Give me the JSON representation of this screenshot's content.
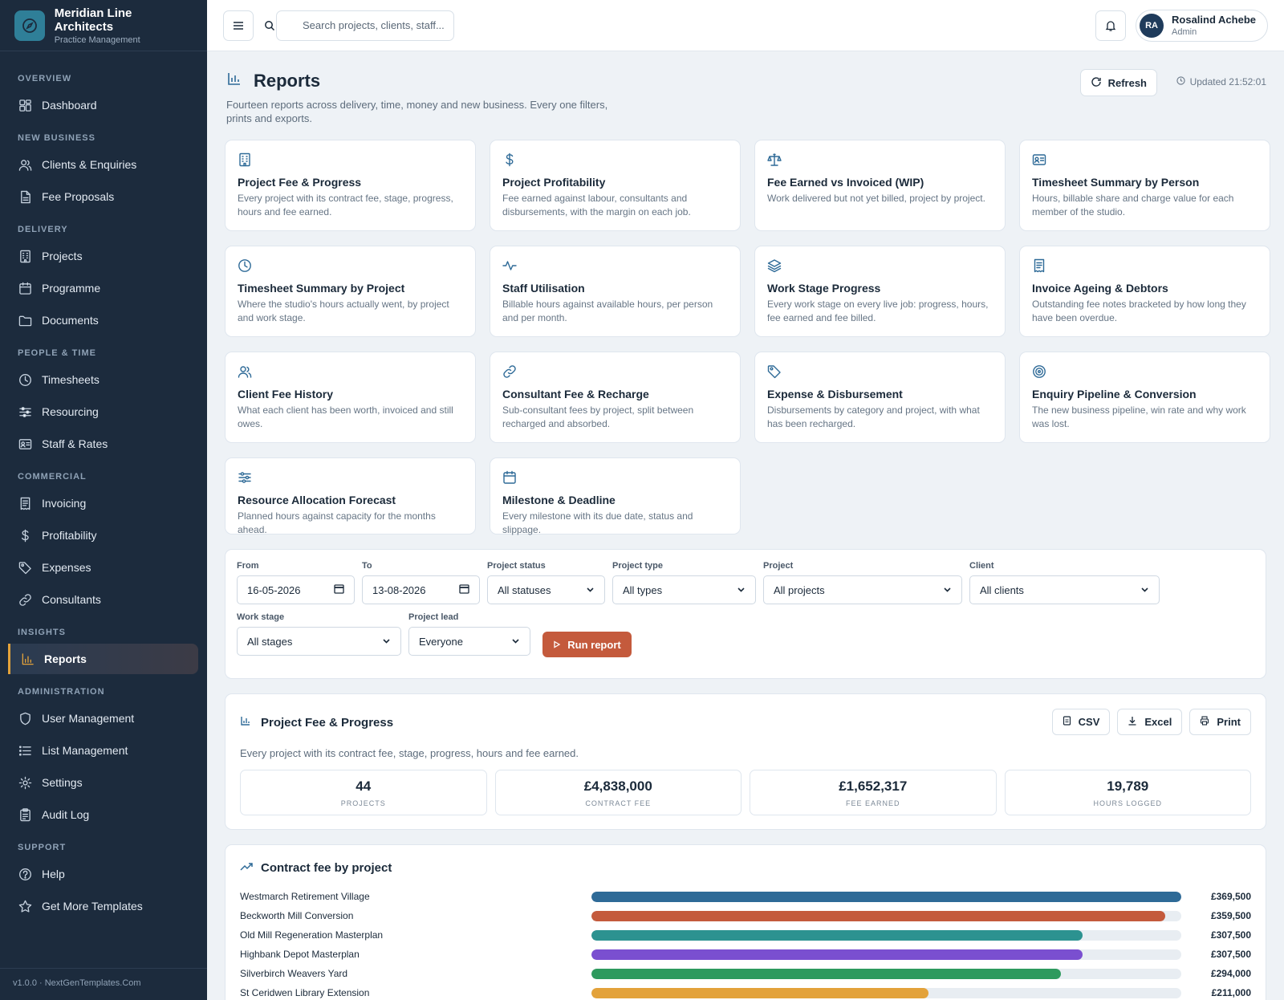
{
  "brand": {
    "name": "Meridian Line Architects",
    "sub": "Practice Management"
  },
  "sidebar": {
    "sections": [
      {
        "title": "OVERVIEW",
        "items": [
          {
            "label": "Dashboard",
            "icon": "dashboard-icon"
          }
        ]
      },
      {
        "title": "NEW BUSINESS",
        "items": [
          {
            "label": "Clients & Enquiries",
            "icon": "users-icon"
          },
          {
            "label": "Fee Proposals",
            "icon": "document-icon"
          }
        ]
      },
      {
        "title": "DELIVERY",
        "items": [
          {
            "label": "Projects",
            "icon": "building-icon"
          },
          {
            "label": "Programme",
            "icon": "calendar-icon"
          },
          {
            "label": "Documents",
            "icon": "folder-icon"
          }
        ]
      },
      {
        "title": "PEOPLE & TIME",
        "items": [
          {
            "label": "Timesheets",
            "icon": "clock-icon"
          },
          {
            "label": "Resourcing",
            "icon": "sliders-icon"
          },
          {
            "label": "Staff & Rates",
            "icon": "id-card-icon"
          }
        ]
      },
      {
        "title": "COMMERCIAL",
        "items": [
          {
            "label": "Invoicing",
            "icon": "invoice-icon"
          },
          {
            "label": "Profitability",
            "icon": "dollar-icon"
          },
          {
            "label": "Expenses",
            "icon": "tag-icon"
          },
          {
            "label": "Consultants",
            "icon": "link-icon"
          }
        ]
      },
      {
        "title": "INSIGHTS",
        "items": [
          {
            "label": "Reports",
            "icon": "bar-chart-icon",
            "active": true
          }
        ]
      },
      {
        "title": "ADMINISTRATION",
        "items": [
          {
            "label": "User Management",
            "icon": "shield-icon"
          },
          {
            "label": "List Management",
            "icon": "list-icon"
          },
          {
            "label": "Settings",
            "icon": "gear-icon"
          },
          {
            "label": "Audit Log",
            "icon": "clipboard-icon"
          }
        ]
      },
      {
        "title": "SUPPORT",
        "items": [
          {
            "label": "Help",
            "icon": "help-icon"
          },
          {
            "label": "Get More Templates",
            "icon": "star-icon"
          }
        ]
      }
    ],
    "footer": "v1.0.0 · NextGenTemplates.Com"
  },
  "topbar": {
    "search_placeholder": "Search projects, clients, staff...",
    "user": {
      "initials": "RA",
      "name": "Rosalind Achebe",
      "role": "Admin"
    }
  },
  "page": {
    "title": "Reports",
    "description": "Fourteen reports across delivery, time, money and new business. Every one filters, prints and exports.",
    "refresh_label": "Refresh",
    "updated": "Updated 21:52:01"
  },
  "reports": [
    {
      "title": "Project Fee & Progress",
      "desc": "Every project with its contract fee, stage, progress, hours and fee earned.",
      "icon": "building-icon"
    },
    {
      "title": "Project Profitability",
      "desc": "Fee earned against labour, consultants and disbursements, with the margin on each job.",
      "icon": "dollar-icon"
    },
    {
      "title": "Fee Earned vs Invoiced (WIP)",
      "desc": "Work delivered but not yet billed, project by project.",
      "icon": "scale-icon"
    },
    {
      "title": "Timesheet Summary by Person",
      "desc": "Hours, billable share and charge value for each member of the studio.",
      "icon": "id-card-icon"
    },
    {
      "title": "Timesheet Summary by Project",
      "desc": "Where the studio's hours actually went, by project and work stage.",
      "icon": "clock-icon"
    },
    {
      "title": "Staff Utilisation",
      "desc": "Billable hours against available hours, per person and per month.",
      "icon": "activity-icon"
    },
    {
      "title": "Work Stage Progress",
      "desc": "Every work stage on every live job: progress, hours, fee earned and fee billed.",
      "icon": "layers-icon"
    },
    {
      "title": "Invoice Ageing & Debtors",
      "desc": "Outstanding fee notes bracketed by how long they have been overdue.",
      "icon": "invoice-icon"
    },
    {
      "title": "Client Fee History",
      "desc": "What each client has been worth, invoiced and still owes.",
      "icon": "users-icon"
    },
    {
      "title": "Consultant Fee & Recharge",
      "desc": "Sub-consultant fees by project, split between recharged and absorbed.",
      "icon": "link-icon"
    },
    {
      "title": "Expense & Disbursement",
      "desc": "Disbursements by category and project, with what has been recharged.",
      "icon": "tag-icon"
    },
    {
      "title": "Enquiry Pipeline & Conversion",
      "desc": "The new business pipeline, win rate and why work was lost.",
      "icon": "target-icon"
    },
    {
      "title": "Resource Allocation Forecast",
      "desc": "Planned hours against capacity for the months ahead.",
      "icon": "sliders-icon"
    },
    {
      "title": "Milestone & Deadline",
      "desc": "Every milestone with its due date, status and slippage.",
      "icon": "calendar-icon"
    }
  ],
  "filters": {
    "from": {
      "label": "From",
      "value": "16-05-2026"
    },
    "to": {
      "label": "To",
      "value": "13-08-2026"
    },
    "status": {
      "label": "Project status",
      "value": "All statuses"
    },
    "type": {
      "label": "Project type",
      "value": "All types"
    },
    "project": {
      "label": "Project",
      "value": "All projects"
    },
    "client": {
      "label": "Client",
      "value": "All clients"
    },
    "stage": {
      "label": "Work stage",
      "value": "All stages"
    },
    "lead": {
      "label": "Project lead",
      "value": "Everyone"
    },
    "run_label": "Run report"
  },
  "report": {
    "title": "Project Fee & Progress",
    "desc": "Every project with its contract fee, stage, progress, hours and fee earned.",
    "exports": {
      "csv": "CSV",
      "excel": "Excel",
      "print": "Print"
    },
    "stats": [
      {
        "value": "44",
        "label": "PROJECTS"
      },
      {
        "value": "£4,838,000",
        "label": "CONTRACT FEE"
      },
      {
        "value": "£1,652,317",
        "label": "FEE EARNED"
      },
      {
        "value": "19,789",
        "label": "HOURS LOGGED"
      }
    ]
  },
  "chart_data": {
    "type": "bar",
    "title": "Contract fee by project",
    "categories": [
      "Westmarch Retirement Village",
      "Beckworth Mill Conversion",
      "Old Mill Regeneration Masterplan",
      "Highbank Depot Masterplan",
      "Silverbirch Weavers Yard",
      "St Ceridwen Library Extension"
    ],
    "values": [
      369500,
      359500,
      307500,
      307500,
      294000,
      211000
    ],
    "value_labels": [
      "£369,500",
      "£359,500",
      "£307,500",
      "£307,500",
      "£294,000",
      "£211,000"
    ],
    "colors": [
      "#2e6a97",
      "#c45a3c",
      "#2c9290",
      "#7a4fd0",
      "#2e9a5e",
      "#e3a23a"
    ],
    "xlim": [
      0,
      369500
    ]
  }
}
